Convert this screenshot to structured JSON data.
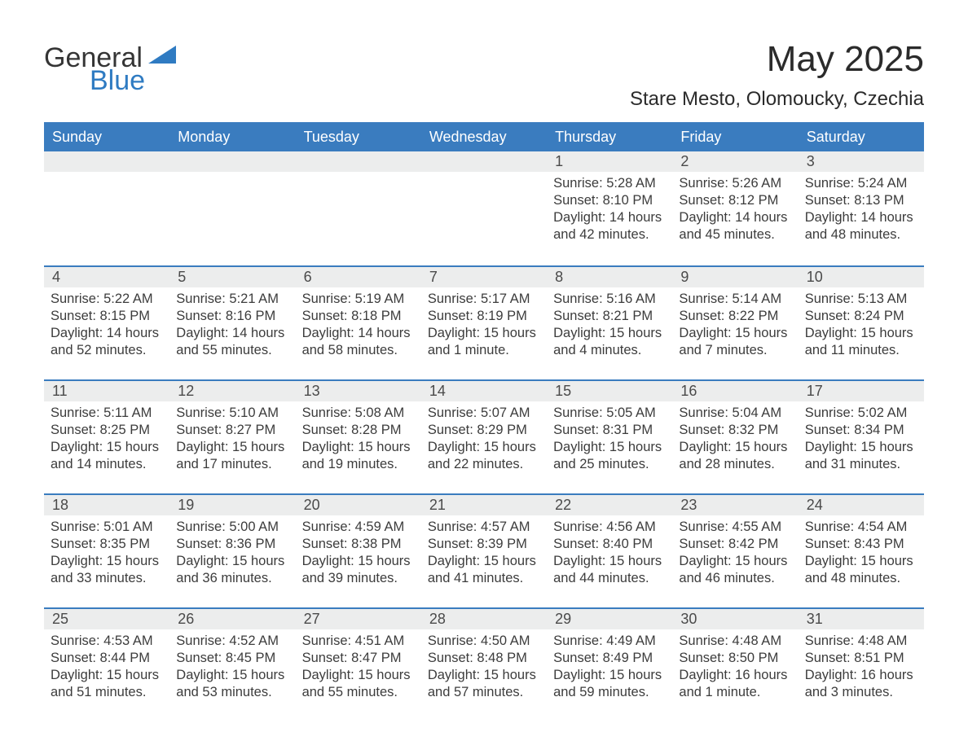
{
  "logo": {
    "word1": "General",
    "word2": "Blue",
    "tri_color": "#2f7bc2"
  },
  "title": "May 2025",
  "location": "Stare Mesto, Olomoucky, Czechia",
  "colors": {
    "header_bg": "#3a7cbf",
    "header_text": "#ffffff",
    "week_border": "#3a7cbf",
    "daynum_bg": "#eceded",
    "body_text": "#3c3c3c",
    "page_bg": "#ffffff"
  },
  "typography": {
    "title_fontsize": 44,
    "location_fontsize": 24,
    "dayhead_fontsize": 18,
    "body_fontsize": 16.5,
    "font_family": "Arial"
  },
  "day_headers": [
    "Sunday",
    "Monday",
    "Tuesday",
    "Wednesday",
    "Thursday",
    "Friday",
    "Saturday"
  ],
  "weeks": [
    [
      {
        "empty": true
      },
      {
        "empty": true
      },
      {
        "empty": true
      },
      {
        "empty": true
      },
      {
        "n": "1",
        "sunrise": "Sunrise: 5:28 AM",
        "sunset": "Sunset: 8:10 PM",
        "dl1": "Daylight: 14 hours",
        "dl2": "and 42 minutes."
      },
      {
        "n": "2",
        "sunrise": "Sunrise: 5:26 AM",
        "sunset": "Sunset: 8:12 PM",
        "dl1": "Daylight: 14 hours",
        "dl2": "and 45 minutes."
      },
      {
        "n": "3",
        "sunrise": "Sunrise: 5:24 AM",
        "sunset": "Sunset: 8:13 PM",
        "dl1": "Daylight: 14 hours",
        "dl2": "and 48 minutes."
      }
    ],
    [
      {
        "n": "4",
        "sunrise": "Sunrise: 5:22 AM",
        "sunset": "Sunset: 8:15 PM",
        "dl1": "Daylight: 14 hours",
        "dl2": "and 52 minutes."
      },
      {
        "n": "5",
        "sunrise": "Sunrise: 5:21 AM",
        "sunset": "Sunset: 8:16 PM",
        "dl1": "Daylight: 14 hours",
        "dl2": "and 55 minutes."
      },
      {
        "n": "6",
        "sunrise": "Sunrise: 5:19 AM",
        "sunset": "Sunset: 8:18 PM",
        "dl1": "Daylight: 14 hours",
        "dl2": "and 58 minutes."
      },
      {
        "n": "7",
        "sunrise": "Sunrise: 5:17 AM",
        "sunset": "Sunset: 8:19 PM",
        "dl1": "Daylight: 15 hours",
        "dl2": "and 1 minute."
      },
      {
        "n": "8",
        "sunrise": "Sunrise: 5:16 AM",
        "sunset": "Sunset: 8:21 PM",
        "dl1": "Daylight: 15 hours",
        "dl2": "and 4 minutes."
      },
      {
        "n": "9",
        "sunrise": "Sunrise: 5:14 AM",
        "sunset": "Sunset: 8:22 PM",
        "dl1": "Daylight: 15 hours",
        "dl2": "and 7 minutes."
      },
      {
        "n": "10",
        "sunrise": "Sunrise: 5:13 AM",
        "sunset": "Sunset: 8:24 PM",
        "dl1": "Daylight: 15 hours",
        "dl2": "and 11 minutes."
      }
    ],
    [
      {
        "n": "11",
        "sunrise": "Sunrise: 5:11 AM",
        "sunset": "Sunset: 8:25 PM",
        "dl1": "Daylight: 15 hours",
        "dl2": "and 14 minutes."
      },
      {
        "n": "12",
        "sunrise": "Sunrise: 5:10 AM",
        "sunset": "Sunset: 8:27 PM",
        "dl1": "Daylight: 15 hours",
        "dl2": "and 17 minutes."
      },
      {
        "n": "13",
        "sunrise": "Sunrise: 5:08 AM",
        "sunset": "Sunset: 8:28 PM",
        "dl1": "Daylight: 15 hours",
        "dl2": "and 19 minutes."
      },
      {
        "n": "14",
        "sunrise": "Sunrise: 5:07 AM",
        "sunset": "Sunset: 8:29 PM",
        "dl1": "Daylight: 15 hours",
        "dl2": "and 22 minutes."
      },
      {
        "n": "15",
        "sunrise": "Sunrise: 5:05 AM",
        "sunset": "Sunset: 8:31 PM",
        "dl1": "Daylight: 15 hours",
        "dl2": "and 25 minutes."
      },
      {
        "n": "16",
        "sunrise": "Sunrise: 5:04 AM",
        "sunset": "Sunset: 8:32 PM",
        "dl1": "Daylight: 15 hours",
        "dl2": "and 28 minutes."
      },
      {
        "n": "17",
        "sunrise": "Sunrise: 5:02 AM",
        "sunset": "Sunset: 8:34 PM",
        "dl1": "Daylight: 15 hours",
        "dl2": "and 31 minutes."
      }
    ],
    [
      {
        "n": "18",
        "sunrise": "Sunrise: 5:01 AM",
        "sunset": "Sunset: 8:35 PM",
        "dl1": "Daylight: 15 hours",
        "dl2": "and 33 minutes."
      },
      {
        "n": "19",
        "sunrise": "Sunrise: 5:00 AM",
        "sunset": "Sunset: 8:36 PM",
        "dl1": "Daylight: 15 hours",
        "dl2": "and 36 minutes."
      },
      {
        "n": "20",
        "sunrise": "Sunrise: 4:59 AM",
        "sunset": "Sunset: 8:38 PM",
        "dl1": "Daylight: 15 hours",
        "dl2": "and 39 minutes."
      },
      {
        "n": "21",
        "sunrise": "Sunrise: 4:57 AM",
        "sunset": "Sunset: 8:39 PM",
        "dl1": "Daylight: 15 hours",
        "dl2": "and 41 minutes."
      },
      {
        "n": "22",
        "sunrise": "Sunrise: 4:56 AM",
        "sunset": "Sunset: 8:40 PM",
        "dl1": "Daylight: 15 hours",
        "dl2": "and 44 minutes."
      },
      {
        "n": "23",
        "sunrise": "Sunrise: 4:55 AM",
        "sunset": "Sunset: 8:42 PM",
        "dl1": "Daylight: 15 hours",
        "dl2": "and 46 minutes."
      },
      {
        "n": "24",
        "sunrise": "Sunrise: 4:54 AM",
        "sunset": "Sunset: 8:43 PM",
        "dl1": "Daylight: 15 hours",
        "dl2": "and 48 minutes."
      }
    ],
    [
      {
        "n": "25",
        "sunrise": "Sunrise: 4:53 AM",
        "sunset": "Sunset: 8:44 PM",
        "dl1": "Daylight: 15 hours",
        "dl2": "and 51 minutes."
      },
      {
        "n": "26",
        "sunrise": "Sunrise: 4:52 AM",
        "sunset": "Sunset: 8:45 PM",
        "dl1": "Daylight: 15 hours",
        "dl2": "and 53 minutes."
      },
      {
        "n": "27",
        "sunrise": "Sunrise: 4:51 AM",
        "sunset": "Sunset: 8:47 PM",
        "dl1": "Daylight: 15 hours",
        "dl2": "and 55 minutes."
      },
      {
        "n": "28",
        "sunrise": "Sunrise: 4:50 AM",
        "sunset": "Sunset: 8:48 PM",
        "dl1": "Daylight: 15 hours",
        "dl2": "and 57 minutes."
      },
      {
        "n": "29",
        "sunrise": "Sunrise: 4:49 AM",
        "sunset": "Sunset: 8:49 PM",
        "dl1": "Daylight: 15 hours",
        "dl2": "and 59 minutes."
      },
      {
        "n": "30",
        "sunrise": "Sunrise: 4:48 AM",
        "sunset": "Sunset: 8:50 PM",
        "dl1": "Daylight: 16 hours",
        "dl2": "and 1 minute."
      },
      {
        "n": "31",
        "sunrise": "Sunrise: 4:48 AM",
        "sunset": "Sunset: 8:51 PM",
        "dl1": "Daylight: 16 hours",
        "dl2": "and 3 minutes."
      }
    ]
  ]
}
